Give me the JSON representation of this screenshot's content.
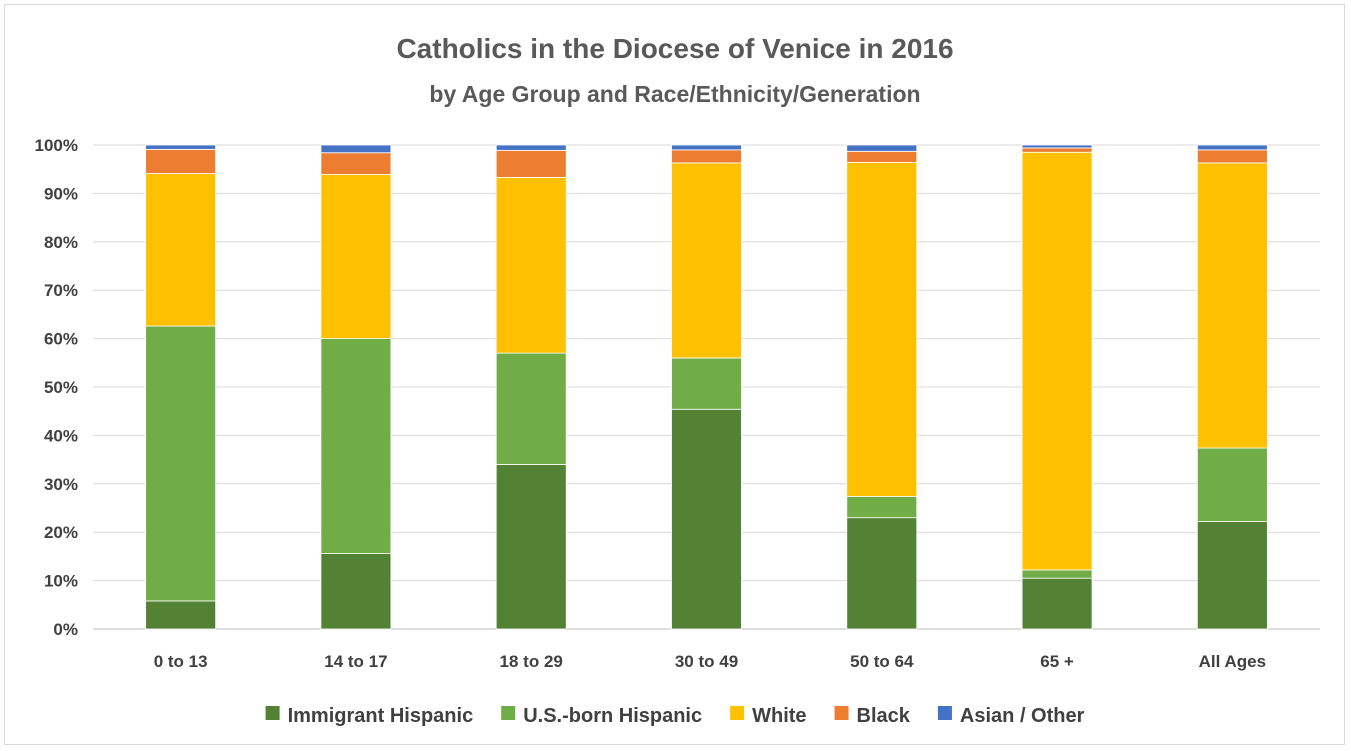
{
  "chart_data": {
    "type": "bar",
    "stacked": true,
    "title": "Catholics in the Diocese of Venice in 2016",
    "subtitle": "by Age Group and Race/Ethnicity/Generation",
    "xlabel": "",
    "ylabel": "",
    "ylim": [
      0,
      100
    ],
    "yticks": [
      "0%",
      "10%",
      "20%",
      "30%",
      "40%",
      "50%",
      "60%",
      "70%",
      "80%",
      "90%",
      "100%"
    ],
    "grid": true,
    "legend_position": "bottom",
    "categories": [
      "0 to 13",
      "14 to 17",
      "18 to 29",
      "30 to 49",
      "50 to 64",
      "65 +",
      "All Ages"
    ],
    "series": [
      {
        "name": "Immigrant Hispanic",
        "color": "#548235",
        "values": [
          5.8,
          15.6,
          34.0,
          45.4,
          23.0,
          10.5,
          22.2
        ]
      },
      {
        "name": "U.S.-born Hispanic",
        "color": "#70ad47",
        "values": [
          56.8,
          44.4,
          23.0,
          10.6,
          4.4,
          1.7,
          15.2
        ]
      },
      {
        "name": "White",
        "color": "#ffc000",
        "values": [
          31.5,
          33.9,
          36.3,
          40.3,
          69.0,
          86.3,
          58.9
        ]
      },
      {
        "name": "Black",
        "color": "#ed7d31",
        "values": [
          5.0,
          4.5,
          5.6,
          2.7,
          2.3,
          0.9,
          2.7
        ]
      },
      {
        "name": "Asian / Other",
        "color": "#4472c4",
        "values": [
          0.9,
          1.6,
          1.1,
          1.0,
          1.3,
          0.6,
          1.0
        ]
      }
    ]
  }
}
